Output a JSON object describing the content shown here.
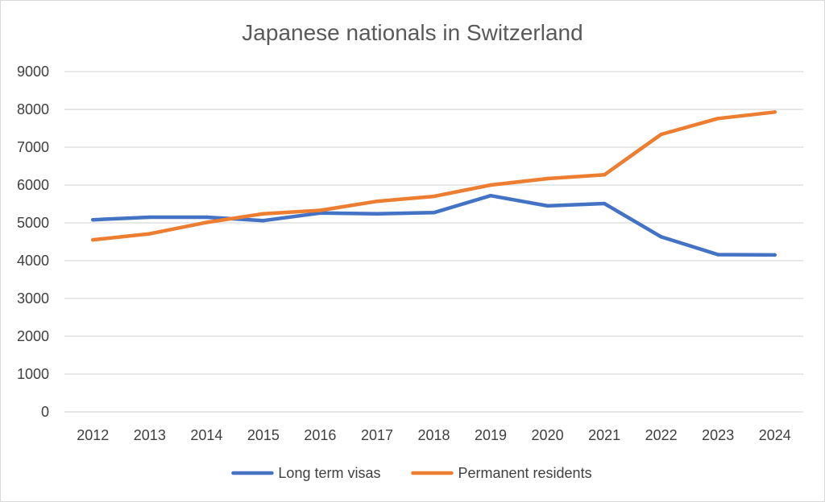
{
  "chart_data": {
    "type": "line",
    "title": "Japanese nationals in Switzerland",
    "categories": [
      "2012",
      "2013",
      "2014",
      "2015",
      "2016",
      "2017",
      "2018",
      "2019",
      "2020",
      "2021",
      "2022",
      "2023",
      "2024"
    ],
    "y_ticks": [
      "0",
      "1000",
      "2000",
      "3000",
      "4000",
      "5000",
      "6000",
      "7000",
      "8000",
      "9000"
    ],
    "ylim": [
      0,
      9000
    ],
    "grid": true,
    "legend_position": "bottom",
    "series": [
      {
        "name": "Long term visas",
        "color": "#4472c4",
        "values": [
          5080,
          5150,
          5150,
          5060,
          5260,
          5240,
          5270,
          5720,
          5450,
          5510,
          4630,
          4160,
          4150
        ]
      },
      {
        "name": "Permanent residents",
        "color": "#ed7d31",
        "values": [
          4550,
          4710,
          5010,
          5240,
          5330,
          5570,
          5700,
          6000,
          6170,
          6270,
          7340,
          7760,
          7930
        ]
      }
    ]
  }
}
